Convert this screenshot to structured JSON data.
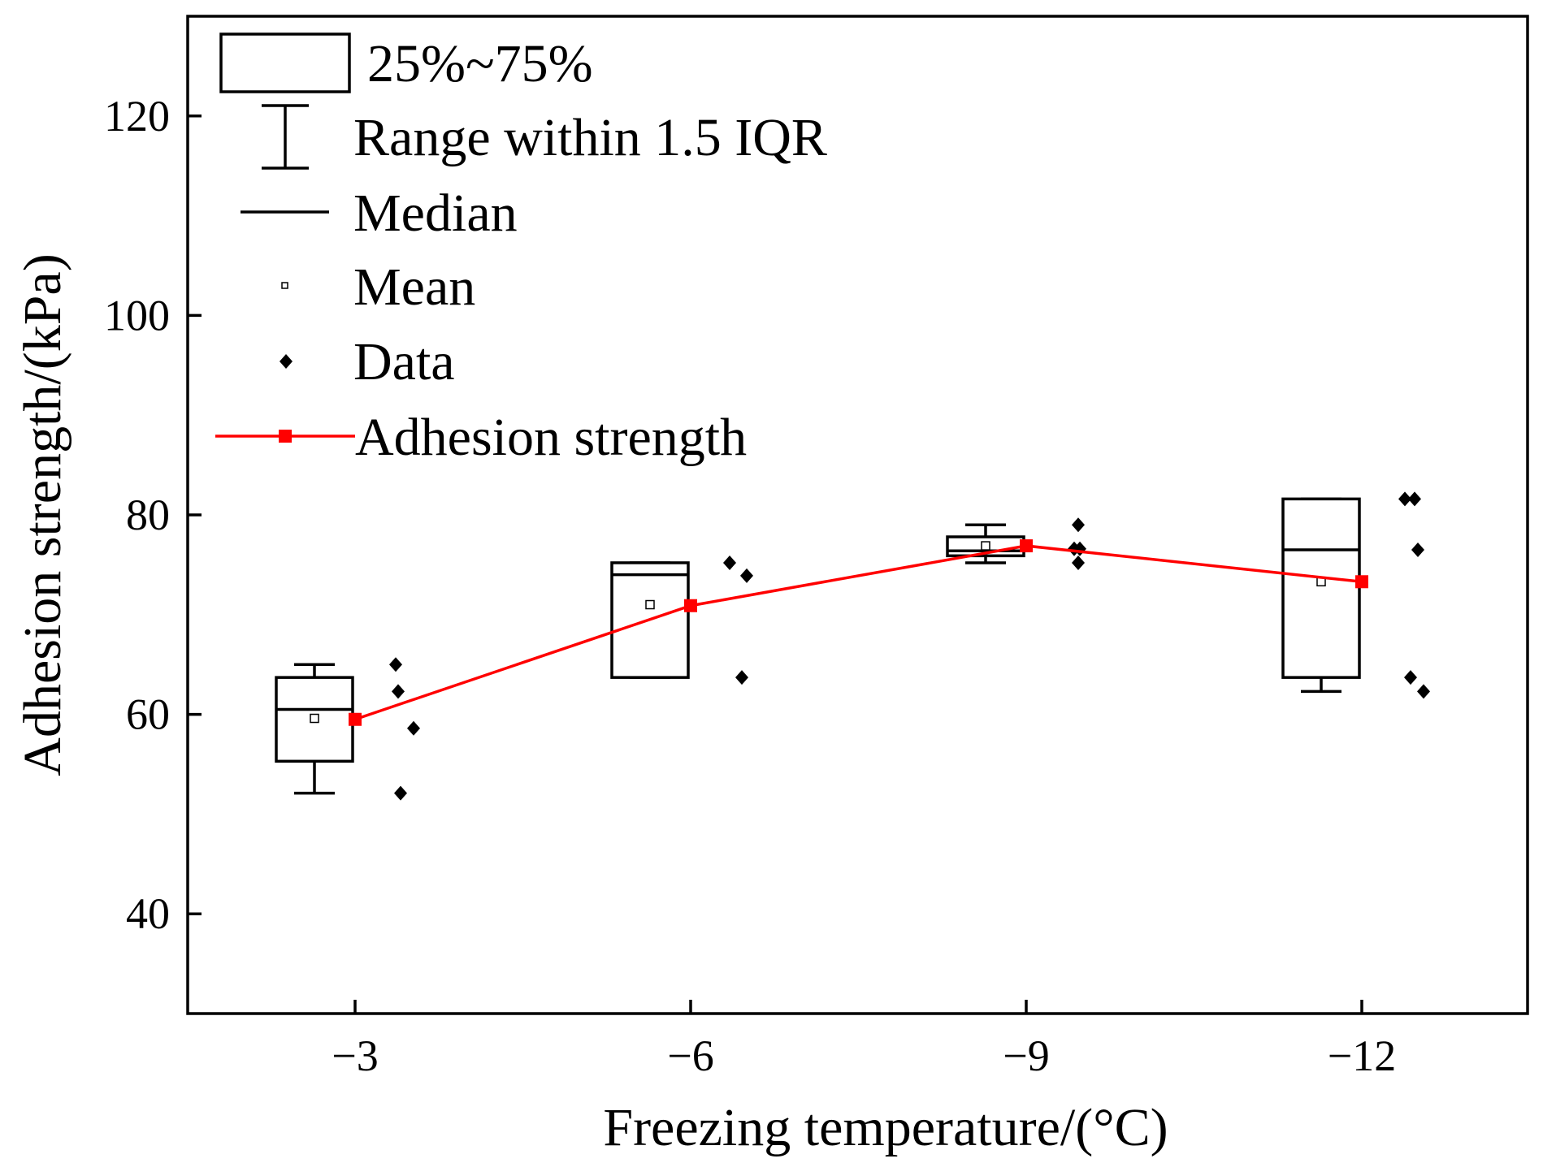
{
  "chart_data": {
    "type": "box",
    "xlabel": "Freezing temperature/(°C)",
    "ylabel": "Adhesion strength/(kPa)",
    "ylim": [
      30,
      130
    ],
    "yticks": [
      40,
      60,
      80,
      100,
      120
    ],
    "categories": [
      "−3",
      "−6",
      "−9",
      "−12"
    ],
    "boxes": [
      {
        "category": "−3",
        "q1": 55.3,
        "median": 60.5,
        "q3": 63.7,
        "whisker_low": 52.1,
        "whisker_high": 65.0,
        "mean": 59.6
      },
      {
        "category": "−6",
        "q1": 63.7,
        "median": 74.0,
        "q3": 75.2,
        "whisker_low": 63.7,
        "whisker_high": 75.2,
        "mean": 71.0
      },
      {
        "category": "−9",
        "q1": 75.9,
        "median": 76.4,
        "q3": 77.8,
        "whisker_low": 75.2,
        "whisker_high": 79.0,
        "mean": 76.9
      },
      {
        "category": "−12",
        "q1": 63.7,
        "median": 76.5,
        "q3": 81.6,
        "whisker_low": 62.3,
        "whisker_high": 81.6,
        "mean": 73.3
      }
    ],
    "data_points": [
      {
        "category": "−3",
        "values": [
          65.0,
          62.3,
          58.6,
          52.1
        ]
      },
      {
        "category": "−6",
        "values": [
          75.2,
          73.9,
          63.7
        ]
      },
      {
        "category": "−9",
        "values": [
          79.0,
          76.6,
          76.6,
          75.2
        ]
      },
      {
        "category": "−12",
        "values": [
          81.6,
          81.6,
          76.5,
          63.7,
          62.3
        ]
      }
    ],
    "series": [
      {
        "name": "Adhesion strength",
        "color": "#ff0000",
        "values": [
          59.5,
          70.9,
          76.9,
          73.3
        ]
      }
    ],
    "legend": {
      "position": "top-left",
      "entries": [
        {
          "label": "25%~75%"
        },
        {
          "label": "Range within 1.5 IQR"
        },
        {
          "label": "Median"
        },
        {
          "label": "Mean"
        },
        {
          "label": "Data"
        },
        {
          "label": "Adhesion strength"
        }
      ]
    }
  }
}
